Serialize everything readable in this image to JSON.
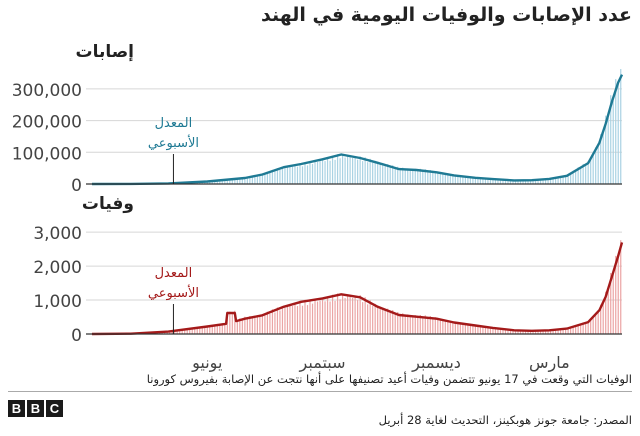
{
  "title": "عدد الإصابات والوفيات اليومية في الهند",
  "footnote": "الوفيات التي وقعت في 17 يونيو تتضمن وفيات أعيد تصنيفها على أنها نتجت عن الإصابة بفيروس كورونا",
  "source": "المصدر: جامعة جونز هوبكينز، التحديث لغاية 28 أبريل",
  "logo": [
    "B",
    "B",
    "C"
  ],
  "colors": {
    "cases_line": "#1f7a94",
    "cases_bar": "#a9d2e3",
    "deaths_line": "#a41a1a",
    "deaths_bar": "#eba4a4",
    "grid": "#d6d6d6",
    "axis": "#333333"
  },
  "chart_data": [
    {
      "type": "area",
      "panel": "cases",
      "panel_title": "إصابات",
      "x_start": "2020-03-01",
      "x_end": "2021-04-28",
      "xticks": [
        {
          "date": "2020-06-01",
          "label": "يونيو"
        },
        {
          "date": "2020-09-01",
          "label": "سبتمبر"
        },
        {
          "date": "2020-12-01",
          "label": "ديسمبر"
        },
        {
          "date": "2021-03-01",
          "label": "مارس"
        }
      ],
      "ylim": [
        0,
        350000
      ],
      "yticks": [
        0,
        100000,
        200000,
        300000
      ],
      "ytick_labels": [
        "0",
        "100,000",
        "200,000",
        "300,000"
      ],
      "annotation": {
        "lines": [
          "المعدل",
          "الأسبوعي"
        ],
        "date": "2020-05-05"
      },
      "series": [
        {
          "points": [
            [
              "2020-03-01",
              0
            ],
            [
              "2020-04-01",
              300
            ],
            [
              "2020-05-01",
              1800
            ],
            [
              "2020-06-01",
              8000
            ],
            [
              "2020-07-01",
              19000
            ],
            [
              "2020-07-15",
              30000
            ],
            [
              "2020-08-01",
              53000
            ],
            [
              "2020-08-15",
              63000
            ],
            [
              "2020-09-01",
              78000
            ],
            [
              "2020-09-16",
              93000
            ],
            [
              "2020-10-01",
              82000
            ],
            [
              "2020-10-15",
              67000
            ],
            [
              "2020-11-01",
              47000
            ],
            [
              "2020-11-15",
              44000
            ],
            [
              "2020-12-01",
              37000
            ],
            [
              "2020-12-15",
              27000
            ],
            [
              "2021-01-01",
              19500
            ],
            [
              "2021-01-15",
              15500
            ],
            [
              "2021-02-01",
              11500
            ],
            [
              "2021-02-15",
              12000
            ],
            [
              "2021-03-01",
              16000
            ],
            [
              "2021-03-15",
              26000
            ],
            [
              "2021-04-01",
              66000
            ],
            [
              "2021-04-10",
              130000
            ],
            [
              "2021-04-15",
              190000
            ],
            [
              "2021-04-20",
              260000
            ],
            [
              "2021-04-25",
              320000
            ],
            [
              "2021-04-28",
              345000
            ]
          ]
        }
      ]
    },
    {
      "type": "area",
      "panel": "deaths",
      "panel_title": "وفيات",
      "x_start": "2020-03-01",
      "x_end": "2021-04-28",
      "xticks": [
        {
          "date": "2020-06-01",
          "label": "يونيو"
        },
        {
          "date": "2020-09-01",
          "label": "سبتمبر"
        },
        {
          "date": "2020-12-01",
          "label": "ديسمبر"
        },
        {
          "date": "2021-03-01",
          "label": "مارس"
        }
      ],
      "ylim": [
        0,
        3300
      ],
      "yticks": [
        0,
        1000,
        2000,
        3000
      ],
      "ytick_labels": [
        "0",
        "1,000",
        "2,000",
        "3,000"
      ],
      "annotation": {
        "lines": [
          "المعدل",
          "الأسبوعي"
        ],
        "date": "2020-05-05"
      },
      "series": [
        {
          "points": [
            [
              "2020-03-01",
              0
            ],
            [
              "2020-04-01",
              10
            ],
            [
              "2020-05-01",
              70
            ],
            [
              "2020-06-01",
              220
            ],
            [
              "2020-06-16",
              300
            ],
            [
              "2020-06-17",
              620
            ],
            [
              "2020-06-23",
              620
            ],
            [
              "2020-06-24",
              380
            ],
            [
              "2020-07-01",
              450
            ],
            [
              "2020-07-15",
              550
            ],
            [
              "2020-08-01",
              800
            ],
            [
              "2020-08-15",
              950
            ],
            [
              "2020-09-01",
              1050
            ],
            [
              "2020-09-16",
              1170
            ],
            [
              "2020-10-01",
              1080
            ],
            [
              "2020-10-15",
              800
            ],
            [
              "2020-11-01",
              560
            ],
            [
              "2020-11-15",
              510
            ],
            [
              "2020-12-01",
              450
            ],
            [
              "2020-12-15",
              340
            ],
            [
              "2021-01-01",
              250
            ],
            [
              "2021-01-15",
              180
            ],
            [
              "2021-02-01",
              110
            ],
            [
              "2021-02-15",
              95
            ],
            [
              "2021-03-01",
              110
            ],
            [
              "2021-03-15",
              160
            ],
            [
              "2021-04-01",
              350
            ],
            [
              "2021-04-10",
              700
            ],
            [
              "2021-04-15",
              1100
            ],
            [
              "2021-04-20",
              1700
            ],
            [
              "2021-04-25",
              2300
            ],
            [
              "2021-04-28",
              2700
            ]
          ]
        }
      ]
    }
  ]
}
